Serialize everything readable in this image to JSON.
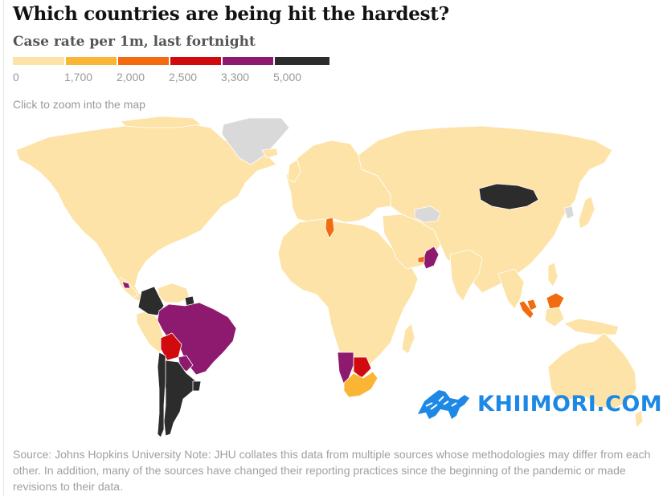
{
  "title": "Which countries are being hit the hardest?",
  "subtitle": "Case rate per 1m, last fortnight",
  "legend": {
    "bins": [
      {
        "label": "0",
        "color": "#fde3a7"
      },
      {
        "label": "1,700",
        "color": "#fbb534"
      },
      {
        "label": "2,000",
        "color": "#f26b0f"
      },
      {
        "label": "2,500",
        "color": "#d10a10"
      },
      {
        "label": "3,300",
        "color": "#8d1a6e"
      },
      {
        "label": "5,000",
        "color": "#2c2c2c"
      }
    ]
  },
  "hint": "Click to zoom into the map",
  "colors": {
    "low": "#fde3a7",
    "bin_1700": "#fbb534",
    "bin_2000": "#f26b0f",
    "bin_2500": "#d10a10",
    "bin_3300": "#8d1a6e",
    "bin_5000": "#2c2c2c",
    "no_data": "#d9d9d9",
    "border": "#ffffff"
  },
  "map_regions": [
    {
      "name": "north-america",
      "bin": "low"
    },
    {
      "name": "greenland",
      "bin": "no_data"
    },
    {
      "name": "colombia",
      "bin": "bin_5000"
    },
    {
      "name": "suriname",
      "bin": "bin_5000"
    },
    {
      "name": "costa-rica",
      "bin": "bin_3300"
    },
    {
      "name": "brazil",
      "bin": "bin_3300"
    },
    {
      "name": "bolivia",
      "bin": "bin_2500"
    },
    {
      "name": "paraguay",
      "bin": "bin_3300"
    },
    {
      "name": "argentina",
      "bin": "bin_5000"
    },
    {
      "name": "chile",
      "bin": "bin_5000"
    },
    {
      "name": "uruguay",
      "bin": "bin_5000"
    },
    {
      "name": "tunisia",
      "bin": "bin_2000"
    },
    {
      "name": "georgia",
      "bin": "bin_2000"
    },
    {
      "name": "oman",
      "bin": "bin_3300"
    },
    {
      "name": "uae",
      "bin": "bin_2000"
    },
    {
      "name": "namibia",
      "bin": "bin_3300"
    },
    {
      "name": "botswana",
      "bin": "bin_2500"
    },
    {
      "name": "south-africa",
      "bin": "bin_1700"
    },
    {
      "name": "mongolia",
      "bin": "bin_5000"
    },
    {
      "name": "turkmenistan",
      "bin": "no_data"
    },
    {
      "name": "north-korea",
      "bin": "no_data"
    },
    {
      "name": "malaysia",
      "bin": "bin_2000"
    },
    {
      "name": "sumatra",
      "bin": "bin_2000"
    },
    {
      "name": "australia",
      "bin": "low"
    }
  ],
  "watermark": "KHIIMORI.COM",
  "source": "Source: Johns Hopkins University Note: JHU collates this data from multiple sources whose methodologies may differ from each other. In addition, many of the sources have changed their reporting practices since the beginning of the pandemic or made revisions to their data."
}
